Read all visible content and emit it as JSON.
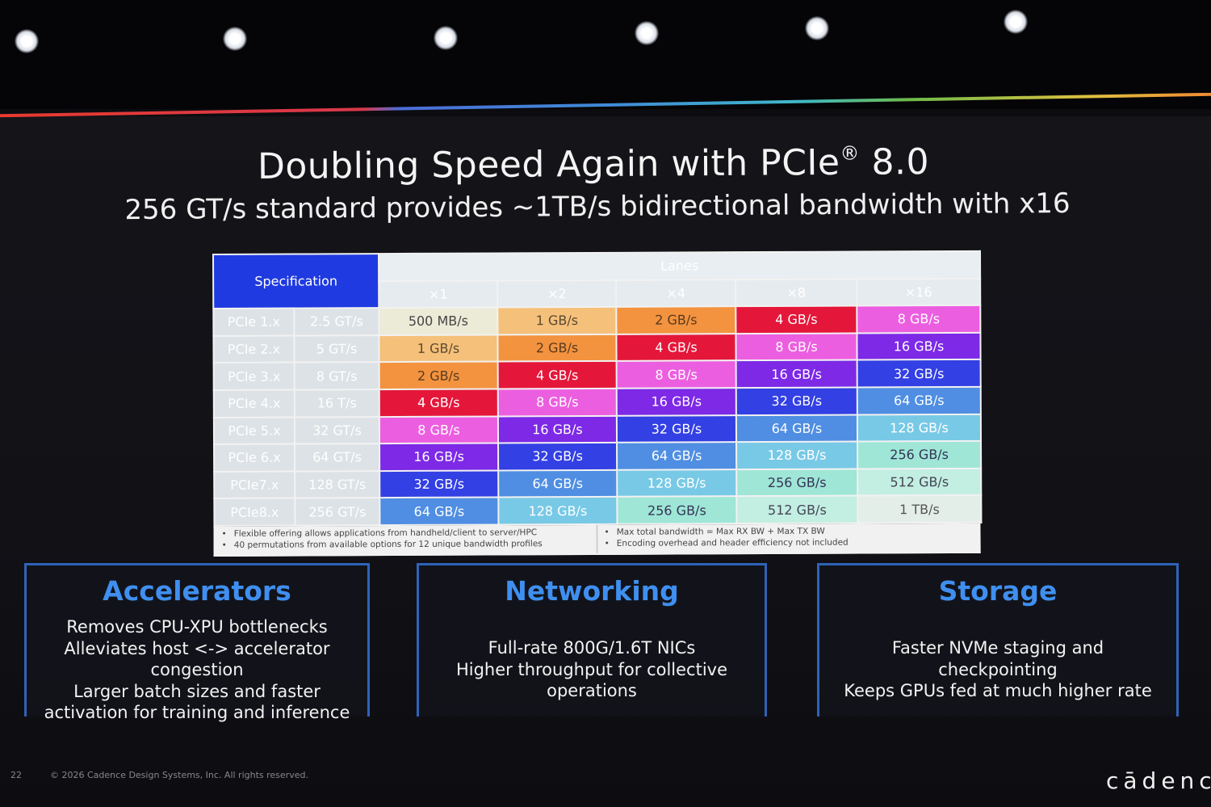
{
  "slide": {
    "title_main": "Doubling Speed Again with PCIe",
    "title_sup": "®",
    "title_end": " 8.0",
    "subtitle": "256 GT/s standard provides ~1TB/s bidirectional bandwidth with x16"
  },
  "table": {
    "spec_header": "Specification",
    "lanes_header": "Lanes",
    "lanes": [
      "×1",
      "×2",
      "×4",
      "×8",
      "×16"
    ],
    "rows": [
      {
        "gen": "PCIe 1.x",
        "rate": "2.5 GT/s",
        "cells": [
          "500 MB/s",
          "1 GB/s",
          "2 GB/s",
          "4 GB/s",
          "8 GB/s"
        ]
      },
      {
        "gen": "PCIe 2.x",
        "rate": "5 GT/s",
        "cells": [
          "1 GB/s",
          "2 GB/s",
          "4 GB/s",
          "8 GB/s",
          "16 GB/s"
        ]
      },
      {
        "gen": "PCIe 3.x",
        "rate": "8 GT/s",
        "cells": [
          "2 GB/s",
          "4 GB/s",
          "8 GB/s",
          "16 GB/s",
          "32 GB/s"
        ]
      },
      {
        "gen": "PCIe 4.x",
        "rate": "16 T/s",
        "cells": [
          "4 GB/s",
          "8 GB/s",
          "16 GB/s",
          "32 GB/s",
          "64 GB/s"
        ]
      },
      {
        "gen": "PCIe 5.x",
        "rate": "32 GT/s",
        "cells": [
          "8 GB/s",
          "16 GB/s",
          "32 GB/s",
          "64 GB/s",
          "128 GB/s"
        ]
      },
      {
        "gen": "PCIe 6.x",
        "rate": "64 GT/s",
        "cells": [
          "16 GB/s",
          "32 GB/s",
          "64 GB/s",
          "128 GB/s",
          "256 GB/s"
        ]
      },
      {
        "gen": "PCIe7.x",
        "rate": "128 GT/s",
        "cells": [
          "32 GB/s",
          "64 GB/s",
          "128 GB/s",
          "256 GB/s",
          "512 GB/s"
        ]
      },
      {
        "gen": "PCIe8.x",
        "rate": "256 GT/s",
        "cells": [
          "64 GB/s",
          "128 GB/s",
          "256 GB/s",
          "512 GB/s",
          "1 TB/s"
        ]
      }
    ],
    "notes_left": [
      "Flexible offering allows applications from handheld/client to server/HPC",
      "40 permutations from available options for 12 unique bandwidth profiles"
    ],
    "notes_right": [
      "Max total bandwidth = Max RX BW + Max TX BW",
      "Encoding overhead and header efficiency not included"
    ]
  },
  "cards": {
    "accelerators": {
      "title": "Accelerators",
      "lines": [
        "Removes CPU-XPU bottlenecks",
        "Alleviates host <-> accelerator",
        "congestion",
        "Larger batch sizes and faster",
        "activation for training and inference"
      ]
    },
    "networking": {
      "title": "Networking",
      "lines": [
        "Full-rate 800G/1.6T NICs",
        "Higher throughput for collective",
        "operations"
      ]
    },
    "storage": {
      "title": "Storage",
      "lines": [
        "Faster NVMe staging and",
        "checkpointing",
        "Keeps GPUs fed at much higher rate"
      ]
    }
  },
  "footer": {
    "slide_number": "22",
    "copyright": "© 2026 Cadence Design Systems, Inc. All rights reserved.",
    "logo_text": "cādence"
  },
  "colors": {
    "card_title": "#3f8ff0",
    "spec_header_bg": "#1f3ae0",
    "band_red": "#e83a2f",
    "band_blue": "#3f8ad8",
    "band_green": "#6dbb4a",
    "band_orange": "#f08a32"
  }
}
